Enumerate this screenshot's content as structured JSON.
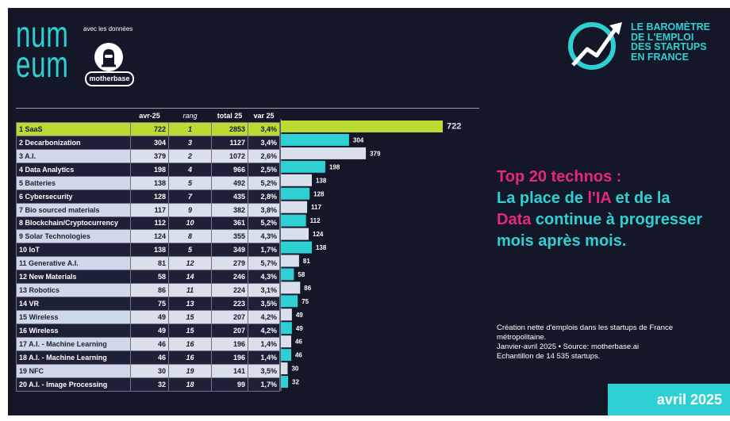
{
  "logo": {
    "word_top": "num",
    "word_bottom": "eum"
  },
  "with_data": "avec les données",
  "partner_logo": "motherbase",
  "barometer": {
    "line1": "LE BAROMÈTRE",
    "line2": "DE L'EMPLOI",
    "line3": "DES STARTUPS",
    "line4": "EN FRANCE"
  },
  "table": {
    "headers": {
      "avr": "avr-25",
      "rang": "rang",
      "total": "total 25",
      "var": "var 25"
    }
  },
  "headline": {
    "line1": "Top 20 technos :",
    "line2a": "La place de ",
    "line2b": "l'IA",
    "line2c": " et de la",
    "line3a": "Data",
    "line3b": " continue à progresser",
    "line4": "mois après mois."
  },
  "footnote": {
    "line1": "Création nette d'emplois dans les startups de France",
    "line2": "métropolitaine.",
    "line3": "Janvier-avril 2025 • Source: motherbase.ai",
    "line4": "Echantillon de 14 535 startups."
  },
  "date_badge": "avril 2025",
  "chart_data": {
    "type": "bar",
    "orientation": "horizontal",
    "categories": [
      "SaaS",
      "Decarbonization",
      "A.I.",
      "Data Analytics",
      "Batteries",
      "Cybersecurity",
      "Bio sourced materials",
      "Blockchain/Cryptocurrency",
      "Solar Technologies",
      "IoT",
      "Generative A.I.",
      "New Materials",
      "Robotics",
      "VR",
      "Wireless",
      "Wireless",
      "A.I. - Machine Learning",
      "A.I. - Machine Learning",
      "NFC",
      "A.I. - Image Processing"
    ],
    "positions": [
      "1",
      "2",
      "3",
      "4",
      "5",
      "6",
      "7",
      "8",
      "9",
      "10",
      "11",
      "12",
      "13",
      "14",
      "15",
      "16",
      "17",
      "18",
      "19",
      "20"
    ],
    "values": [
      722,
      304,
      379,
      198,
      138,
      128,
      117,
      112,
      124,
      138,
      81,
      58,
      86,
      75,
      49,
      49,
      46,
      46,
      30,
      32
    ],
    "rang": [
      "1",
      "3",
      "2",
      "4",
      "5",
      "7",
      "9",
      "10",
      "8",
      "5",
      "12",
      "14",
      "11",
      "13",
      "15",
      "15",
      "16",
      "16",
      "19",
      "18"
    ],
    "total": [
      "2853",
      "1127",
      "1072",
      "966",
      "492",
      "435",
      "382",
      "361",
      "355",
      "349",
      "279",
      "246",
      "224",
      "223",
      "207",
      "207",
      "196",
      "196",
      "141",
      "99"
    ],
    "var": [
      "3,4%",
      "3,4%",
      "2,6%",
      "2,5%",
      "5,2%",
      "2,8%",
      "3,8%",
      "5,2%",
      "4,3%",
      "1,7%",
      "5,7%",
      "4,3%",
      "3,1%",
      "3,5%",
      "4,2%",
      "4,2%",
      "1,4%",
      "1,4%",
      "3,5%",
      "1,7%"
    ],
    "xlim": [
      0,
      722
    ],
    "colors": {
      "highlight": "#b8dc33",
      "teal": "#2ed0d4",
      "light": "#d9e0ec"
    }
  }
}
